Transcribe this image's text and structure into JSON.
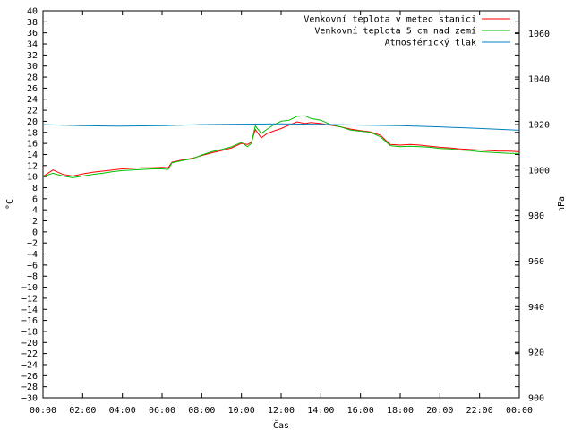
{
  "chart_data": {
    "type": "line",
    "xlabel": "Čas",
    "ylabel": "°C",
    "y2label": "hPa",
    "x_ticks": [
      "00:00",
      "02:00",
      "04:00",
      "06:00",
      "08:00",
      "10:00",
      "12:00",
      "14:00",
      "16:00",
      "18:00",
      "20:00",
      "22:00",
      "00:00"
    ],
    "xlim": [
      0,
      24
    ],
    "ylim": [
      -30,
      40
    ],
    "y_ticks": [
      40,
      38,
      36,
      34,
      32,
      30,
      28,
      26,
      24,
      22,
      20,
      18,
      16,
      14,
      12,
      10,
      8,
      6,
      4,
      2,
      0,
      -2,
      -4,
      -6,
      -8,
      -10,
      -12,
      -14,
      -16,
      -18,
      -20,
      -22,
      -24,
      -26,
      -28,
      -30
    ],
    "y2lim": [
      900,
      1070
    ],
    "y2_ticks": [
      1060,
      1040,
      1020,
      1000,
      980,
      960,
      940,
      920,
      900
    ],
    "grid": false,
    "legend_position": "top-right",
    "series": [
      {
        "name": "Venkovní teplota v meteo stanici",
        "axis": "left",
        "color": "#ff0000",
        "x": [
          0,
          0.5,
          1,
          1.5,
          2,
          2.5,
          3,
          3.5,
          4,
          4.5,
          5,
          5.5,
          6,
          6.3,
          6.5,
          7,
          7.5,
          8,
          8.5,
          9,
          9.5,
          10,
          10.3,
          10.5,
          10.7,
          11,
          11.3,
          11.6,
          12,
          12.4,
          12.8,
          13.2,
          13.5,
          14,
          14.5,
          15,
          15.5,
          16,
          16.5,
          17,
          17.5,
          18,
          18.5,
          19,
          19.5,
          20,
          20.5,
          21,
          21.5,
          22,
          22.5,
          23,
          23.5,
          24
        ],
        "values": [
          10,
          11.2,
          10.4,
          10.1,
          10.5,
          10.8,
          11,
          11.2,
          11.4,
          11.5,
          11.6,
          11.6,
          11.7,
          11.6,
          12.6,
          13,
          13.3,
          13.8,
          14.3,
          14.7,
          15.2,
          16,
          15.8,
          16.2,
          18.5,
          17,
          17.8,
          18.2,
          18.7,
          19.3,
          19.9,
          19.6,
          19.8,
          19.6,
          19.3,
          19,
          18.6,
          18.3,
          18.1,
          17.5,
          15.8,
          15.7,
          15.8,
          15.7,
          15.5,
          15.3,
          15.2,
          15,
          14.9,
          14.8,
          14.7,
          14.6,
          14.6,
          14.5
        ]
      },
      {
        "name": "Venkovní teplota 5 cm nad zemí",
        "axis": "left",
        "color": "#00c000",
        "x": [
          0,
          0.5,
          1,
          1.5,
          2,
          2.5,
          3,
          3.5,
          4,
          4.5,
          5,
          5.5,
          6,
          6.3,
          6.5,
          7,
          7.5,
          8,
          8.5,
          9,
          9.5,
          10,
          10.3,
          10.5,
          10.7,
          11,
          11.3,
          11.6,
          12,
          12.4,
          12.8,
          13.2,
          13.5,
          14,
          14.5,
          15,
          15.5,
          16,
          16.5,
          17,
          17.5,
          18,
          18.5,
          19,
          19.5,
          20,
          20.5,
          21,
          21.5,
          22,
          22.5,
          23,
          23.5,
          24
        ],
        "values": [
          10,
          10.6,
          10.1,
          9.8,
          10.1,
          10.4,
          10.6,
          10.9,
          11.1,
          11.2,
          11.3,
          11.4,
          11.4,
          11.3,
          12.5,
          12.9,
          13.2,
          13.9,
          14.5,
          14.9,
          15.4,
          16.2,
          15.4,
          16,
          19.2,
          17.8,
          18.6,
          19.3,
          20,
          20.2,
          20.9,
          21,
          20.5,
          20.2,
          19.4,
          19,
          18.4,
          18.2,
          18,
          17.2,
          15.6,
          15.4,
          15.5,
          15.4,
          15.3,
          15.1,
          15,
          14.8,
          14.7,
          14.5,
          14.4,
          14.3,
          14.2,
          14.2
        ]
      },
      {
        "name": "Atmosférický tlak",
        "axis": "right",
        "color": "#0080c0",
        "x": [
          0,
          2,
          4,
          6,
          8,
          10,
          12,
          14,
          16,
          18,
          20,
          22,
          24
        ],
        "values": [
          1020,
          1019.5,
          1019.3,
          1019.5,
          1020,
          1020.2,
          1020.3,
          1020.1,
          1019.8,
          1019.5,
          1019,
          1018.3,
          1017.5
        ]
      }
    ]
  }
}
